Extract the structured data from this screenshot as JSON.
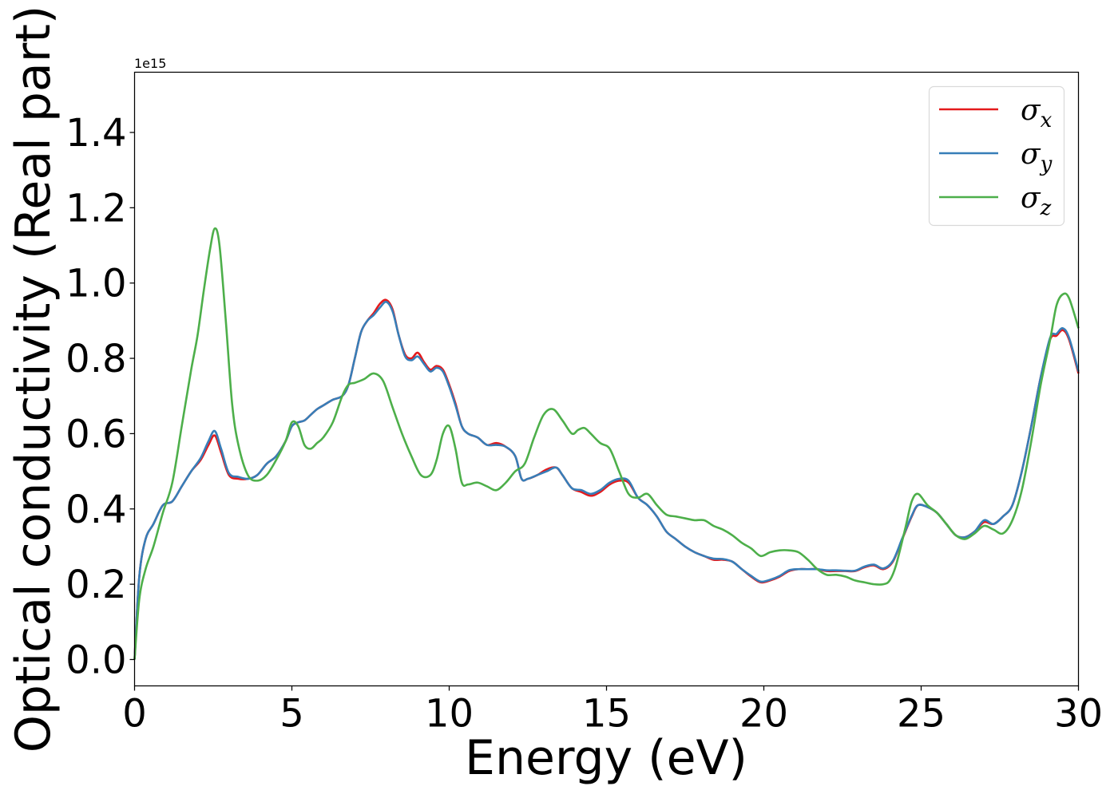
{
  "chart_data": {
    "type": "line",
    "xlabel": "Energy (eV)",
    "ylabel": "Optical conductivity (Real part)",
    "y_offset_label": "1e15",
    "xlim": [
      0,
      30
    ],
    "ylim": [
      -0.07,
      1.56
    ],
    "xticks": [
      0,
      5,
      10,
      15,
      20,
      25,
      30
    ],
    "yticks": [
      0.0,
      0.2,
      0.4,
      0.6,
      0.8,
      1.0,
      1.2,
      1.4
    ],
    "ytick_labels": [
      "0.0",
      "0.2",
      "0.4",
      "0.6",
      "0.8",
      "1.0",
      "1.2",
      "1.4"
    ],
    "grid": false,
    "legend_position": "top-right",
    "series": [
      {
        "name": "σx",
        "symbol": "σ",
        "subscript": "x",
        "color": "#e41a1c",
        "x": [
          0,
          0.15,
          0.35,
          0.6,
          0.9,
          1.2,
          1.5,
          1.8,
          2.1,
          2.35,
          2.55,
          2.75,
          3.0,
          3.3,
          3.6,
          3.9,
          4.2,
          4.5,
          4.8,
          5.0,
          5.2,
          5.4,
          5.6,
          5.8,
          6.0,
          6.3,
          6.6,
          6.8,
          7.0,
          7.2,
          7.4,
          7.6,
          7.8,
          8.0,
          8.2,
          8.4,
          8.6,
          8.8,
          9.0,
          9.2,
          9.4,
          9.6,
          9.8,
          10.0,
          10.2,
          10.4,
          10.6,
          10.9,
          11.2,
          11.5,
          11.8,
          12.1,
          12.3,
          12.5,
          12.8,
          13.1,
          13.4,
          13.6,
          13.9,
          14.2,
          14.5,
          14.8,
          15.1,
          15.4,
          15.7,
          16.0,
          16.3,
          16.6,
          16.9,
          17.2,
          17.5,
          17.8,
          18.1,
          18.4,
          18.7,
          19.0,
          19.3,
          19.6,
          19.9,
          20.2,
          20.5,
          20.8,
          21.1,
          21.4,
          21.7,
          22.0,
          22.3,
          22.6,
          22.9,
          23.2,
          23.5,
          23.8,
          24.1,
          24.4,
          24.7,
          24.9,
          25.2,
          25.5,
          25.8,
          26.1,
          26.4,
          26.7,
          27.0,
          27.3,
          27.6,
          27.9,
          28.2,
          28.5,
          28.8,
          29.1,
          29.3,
          29.5,
          29.7,
          30.0
        ],
        "y": [
          0.0,
          0.22,
          0.32,
          0.36,
          0.41,
          0.42,
          0.46,
          0.5,
          0.53,
          0.57,
          0.595,
          0.55,
          0.49,
          0.48,
          0.48,
          0.49,
          0.52,
          0.54,
          0.58,
          0.62,
          0.63,
          0.635,
          0.65,
          0.665,
          0.675,
          0.69,
          0.7,
          0.73,
          0.8,
          0.87,
          0.9,
          0.92,
          0.945,
          0.955,
          0.93,
          0.86,
          0.81,
          0.8,
          0.815,
          0.79,
          0.77,
          0.78,
          0.77,
          0.73,
          0.68,
          0.62,
          0.6,
          0.59,
          0.57,
          0.575,
          0.565,
          0.54,
          0.48,
          0.48,
          0.49,
          0.505,
          0.51,
          0.49,
          0.455,
          0.445,
          0.435,
          0.445,
          0.465,
          0.475,
          0.47,
          0.43,
          0.41,
          0.38,
          0.34,
          0.32,
          0.3,
          0.285,
          0.275,
          0.265,
          0.265,
          0.26,
          0.24,
          0.22,
          0.205,
          0.21,
          0.22,
          0.235,
          0.24,
          0.24,
          0.24,
          0.235,
          0.235,
          0.235,
          0.235,
          0.245,
          0.25,
          0.24,
          0.26,
          0.32,
          0.38,
          0.41,
          0.405,
          0.39,
          0.36,
          0.33,
          0.325,
          0.34,
          0.365,
          0.36,
          0.38,
          0.41,
          0.5,
          0.62,
          0.75,
          0.85,
          0.86,
          0.875,
          0.85,
          0.76
        ]
      },
      {
        "name": "σy",
        "symbol": "σ",
        "subscript": "y",
        "color": "#377eb8",
        "x": [
          0,
          0.15,
          0.35,
          0.6,
          0.9,
          1.2,
          1.5,
          1.8,
          2.1,
          2.35,
          2.55,
          2.75,
          3.0,
          3.3,
          3.6,
          3.9,
          4.2,
          4.5,
          4.8,
          5.0,
          5.2,
          5.4,
          5.6,
          5.8,
          6.0,
          6.3,
          6.6,
          6.8,
          7.0,
          7.2,
          7.4,
          7.6,
          7.8,
          8.0,
          8.2,
          8.4,
          8.6,
          8.8,
          9.0,
          9.2,
          9.4,
          9.6,
          9.8,
          10.0,
          10.2,
          10.4,
          10.6,
          10.9,
          11.2,
          11.5,
          11.8,
          12.1,
          12.3,
          12.5,
          12.8,
          13.1,
          13.4,
          13.6,
          13.9,
          14.2,
          14.5,
          14.8,
          15.1,
          15.4,
          15.7,
          16.0,
          16.3,
          16.6,
          16.9,
          17.2,
          17.5,
          17.8,
          18.1,
          18.4,
          18.7,
          19.0,
          19.3,
          19.6,
          19.9,
          20.2,
          20.5,
          20.8,
          21.1,
          21.4,
          21.7,
          22.0,
          22.3,
          22.6,
          22.9,
          23.2,
          23.5,
          23.8,
          24.1,
          24.4,
          24.7,
          24.9,
          25.2,
          25.5,
          25.8,
          26.1,
          26.4,
          26.7,
          27.0,
          27.3,
          27.6,
          27.9,
          28.2,
          28.5,
          28.8,
          29.1,
          29.3,
          29.5,
          29.7,
          30.0
        ],
        "y": [
          0.0,
          0.22,
          0.32,
          0.36,
          0.41,
          0.42,
          0.46,
          0.5,
          0.535,
          0.58,
          0.607,
          0.56,
          0.495,
          0.485,
          0.48,
          0.49,
          0.52,
          0.54,
          0.58,
          0.62,
          0.63,
          0.635,
          0.65,
          0.665,
          0.675,
          0.69,
          0.7,
          0.73,
          0.8,
          0.87,
          0.9,
          0.915,
          0.935,
          0.95,
          0.925,
          0.86,
          0.805,
          0.795,
          0.805,
          0.785,
          0.765,
          0.775,
          0.765,
          0.725,
          0.675,
          0.62,
          0.6,
          0.59,
          0.57,
          0.57,
          0.565,
          0.54,
          0.48,
          0.48,
          0.49,
          0.5,
          0.51,
          0.49,
          0.455,
          0.45,
          0.44,
          0.45,
          0.47,
          0.48,
          0.475,
          0.43,
          0.41,
          0.38,
          0.34,
          0.32,
          0.3,
          0.285,
          0.275,
          0.268,
          0.267,
          0.26,
          0.24,
          0.222,
          0.207,
          0.212,
          0.222,
          0.237,
          0.24,
          0.24,
          0.24,
          0.237,
          0.237,
          0.236,
          0.236,
          0.247,
          0.252,
          0.242,
          0.262,
          0.322,
          0.382,
          0.41,
          0.405,
          0.39,
          0.36,
          0.33,
          0.325,
          0.34,
          0.37,
          0.36,
          0.38,
          0.41,
          0.5,
          0.62,
          0.75,
          0.855,
          0.865,
          0.88,
          0.855,
          0.765
        ]
      },
      {
        "name": "σz",
        "symbol": "σ",
        "subscript": "z",
        "color": "#4daf4a",
        "x": [
          0,
          0.15,
          0.35,
          0.6,
          0.9,
          1.2,
          1.5,
          1.8,
          2.0,
          2.2,
          2.4,
          2.55,
          2.7,
          2.9,
          3.1,
          3.3,
          3.6,
          3.9,
          4.2,
          4.5,
          4.8,
          5.0,
          5.2,
          5.4,
          5.6,
          5.8,
          6.0,
          6.3,
          6.6,
          6.8,
          7.0,
          7.3,
          7.6,
          7.9,
          8.2,
          8.5,
          8.8,
          9.1,
          9.4,
          9.6,
          9.8,
          10.0,
          10.2,
          10.4,
          10.6,
          10.9,
          11.2,
          11.5,
          11.8,
          12.1,
          12.4,
          12.7,
          13.0,
          13.3,
          13.6,
          13.9,
          14.1,
          14.3,
          14.5,
          14.8,
          15.1,
          15.4,
          15.7,
          16.0,
          16.3,
          16.6,
          16.9,
          17.2,
          17.5,
          17.8,
          18.1,
          18.4,
          18.7,
          19.0,
          19.3,
          19.6,
          19.9,
          20.2,
          20.5,
          20.8,
          21.1,
          21.4,
          21.7,
          22.0,
          22.3,
          22.6,
          22.9,
          23.2,
          23.5,
          23.8,
          24.0,
          24.2,
          24.5,
          24.7,
          24.9,
          25.2,
          25.5,
          25.8,
          26.1,
          26.4,
          26.7,
          27.0,
          27.3,
          27.6,
          27.9,
          28.2,
          28.5,
          28.8,
          29.1,
          29.3,
          29.5,
          29.7,
          30.0
        ],
        "y": [
          0.0,
          0.16,
          0.24,
          0.3,
          0.39,
          0.47,
          0.62,
          0.77,
          0.86,
          0.98,
          1.09,
          1.145,
          1.1,
          0.9,
          0.68,
          0.57,
          0.49,
          0.475,
          0.49,
          0.53,
          0.58,
          0.63,
          0.62,
          0.57,
          0.56,
          0.575,
          0.59,
          0.63,
          0.7,
          0.73,
          0.735,
          0.745,
          0.76,
          0.74,
          0.67,
          0.6,
          0.54,
          0.49,
          0.49,
          0.53,
          0.6,
          0.62,
          0.56,
          0.47,
          0.465,
          0.47,
          0.46,
          0.45,
          0.47,
          0.5,
          0.52,
          0.59,
          0.65,
          0.665,
          0.635,
          0.6,
          0.61,
          0.615,
          0.6,
          0.575,
          0.56,
          0.5,
          0.44,
          0.43,
          0.44,
          0.41,
          0.385,
          0.38,
          0.375,
          0.37,
          0.37,
          0.355,
          0.345,
          0.33,
          0.31,
          0.295,
          0.275,
          0.285,
          0.29,
          0.29,
          0.285,
          0.265,
          0.24,
          0.225,
          0.225,
          0.22,
          0.21,
          0.205,
          0.2,
          0.2,
          0.21,
          0.25,
          0.35,
          0.42,
          0.44,
          0.41,
          0.39,
          0.36,
          0.33,
          0.32,
          0.335,
          0.355,
          0.345,
          0.335,
          0.37,
          0.45,
          0.58,
          0.73,
          0.85,
          0.94,
          0.97,
          0.96,
          0.88
        ]
      }
    ]
  }
}
